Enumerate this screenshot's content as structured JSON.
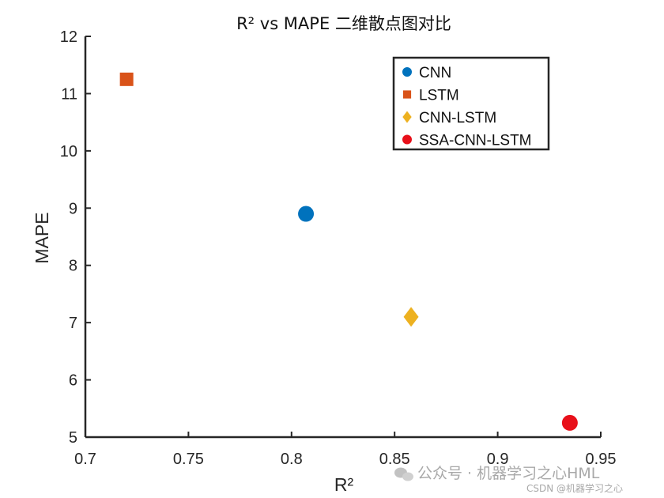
{
  "chart_data": {
    "type": "scatter",
    "title": "R² vs MAPE 二维散点图对比",
    "xlabel": "R²",
    "ylabel": "MAPE",
    "xlim": [
      0.7,
      0.95
    ],
    "ylim": [
      5,
      12
    ],
    "xticks": [
      "0.7",
      "0.75",
      "0.8",
      "0.85",
      "0.9",
      "0.95"
    ],
    "yticks": [
      "5",
      "6",
      "7",
      "8",
      "9",
      "10",
      "11",
      "12"
    ],
    "grid": false,
    "legend_position": "top-right",
    "series": [
      {
        "name": "CNN",
        "marker": "circle",
        "color": "#0072BD",
        "x": 0.807,
        "y": 8.9
      },
      {
        "name": "LSTM",
        "marker": "square",
        "color": "#D95319",
        "x": 0.72,
        "y": 11.25
      },
      {
        "name": "CNN-LSTM",
        "marker": "diamond",
        "color": "#EDB120",
        "x": 0.858,
        "y": 7.1
      },
      {
        "name": "SSA-CNN-LSTM",
        "marker": "circle",
        "color": "#E8101A",
        "x": 0.935,
        "y": 5.25
      }
    ]
  },
  "watermark": {
    "channel": "公众号 · 机器学习之心HML",
    "source": "CSDN @机器学习之心"
  }
}
